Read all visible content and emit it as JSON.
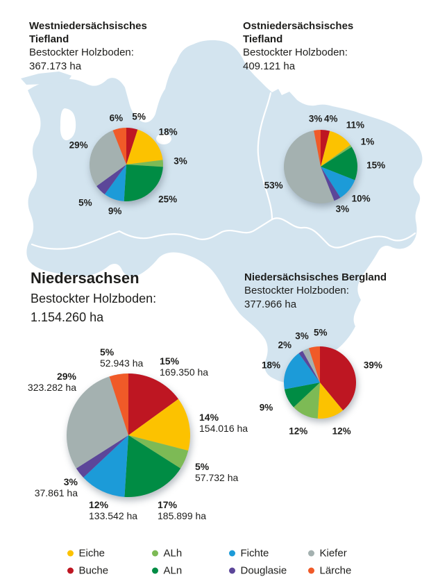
{
  "colors": {
    "Eiche": "#FCC200",
    "Buche": "#BE1622",
    "ALh": "#7DBA55",
    "ALn": "#008C44",
    "Fichte": "#1C9BD8",
    "Douglasie": "#5C4699",
    "Kiefer": "#A4B1B0",
    "Lärche": "#F05A28"
  },
  "map_color": "#D3E4EF",
  "text_color": "#1D1D1B",
  "legend": {
    "items": [
      {
        "label": "Eiche",
        "color_key": "Eiche"
      },
      {
        "label": "Buche",
        "color_key": "Buche"
      },
      {
        "label": "ALh",
        "color_key": "ALh"
      },
      {
        "label": "ALn",
        "color_key": "ALn"
      },
      {
        "label": "Fichte",
        "color_key": "Fichte"
      },
      {
        "label": "Douglasie",
        "color_key": "Douglasie"
      },
      {
        "label": "Kiefer",
        "color_key": "Kiefer"
      },
      {
        "label": "Lärche",
        "color_key": "Lärche"
      }
    ]
  },
  "chart_data": [
    {
      "id": "west-tiefland",
      "type": "pie",
      "title": "Westniedersächsisches Tiefland",
      "subtitle_label": "Bestockter Holzboden:",
      "total": "367.173 ha",
      "unit": "%",
      "start_angle_deg": 0,
      "direction": "clockwise",
      "slices": [
        {
          "name": "Buche",
          "pct": 5
        },
        {
          "name": "Eiche",
          "pct": 18
        },
        {
          "name": "ALh",
          "pct": 3
        },
        {
          "name": "ALn",
          "pct": 25
        },
        {
          "name": "Fichte",
          "pct": 9
        },
        {
          "name": "Douglasie",
          "pct": 5
        },
        {
          "name": "Kiefer",
          "pct": 29
        },
        {
          "name": "Lärche",
          "pct": 6
        }
      ]
    },
    {
      "id": "ost-tiefland",
      "type": "pie",
      "title": "Ostniedersächsisches Tiefland",
      "subtitle_label": "Bestockter Holzboden:",
      "total": "409.121 ha",
      "unit": "%",
      "start_angle_deg": 0,
      "direction": "clockwise",
      "slices": [
        {
          "name": "Buche",
          "pct": 4
        },
        {
          "name": "Eiche",
          "pct": 11
        },
        {
          "name": "ALh",
          "pct": 1
        },
        {
          "name": "ALn",
          "pct": 15
        },
        {
          "name": "Fichte",
          "pct": 10
        },
        {
          "name": "Douglasie",
          "pct": 3
        },
        {
          "name": "Kiefer",
          "pct": 53
        },
        {
          "name": "Lärche",
          "pct": 3
        }
      ]
    },
    {
      "id": "bergland",
      "type": "pie",
      "title": "Niedersächsisches Bergland",
      "subtitle_label": "Bestockter Holzboden:",
      "total": "377.966 ha",
      "unit": "%",
      "start_angle_deg": 0,
      "direction": "clockwise",
      "slices": [
        {
          "name": "Buche",
          "pct": 39
        },
        {
          "name": "Eiche",
          "pct": 12
        },
        {
          "name": "ALh",
          "pct": 12
        },
        {
          "name": "ALn",
          "pct": 9
        },
        {
          "name": "Fichte",
          "pct": 18
        },
        {
          "name": "Douglasie",
          "pct": 2
        },
        {
          "name": "Kiefer",
          "pct": 3
        },
        {
          "name": "Lärche",
          "pct": 5
        }
      ]
    },
    {
      "id": "niedersachsen",
      "type": "pie",
      "title": "Niedersachsen",
      "subtitle_label": "Bestockter Holzboden:",
      "total": "1.154.260 ha",
      "unit": "%",
      "start_angle_deg": 0,
      "direction": "clockwise",
      "slices": [
        {
          "name": "Buche",
          "pct": 15,
          "ha": "169.350 ha"
        },
        {
          "name": "Eiche",
          "pct": 14,
          "ha": "154.016 ha"
        },
        {
          "name": "ALh",
          "pct": 5,
          "ha": "57.732 ha"
        },
        {
          "name": "ALn",
          "pct": 17,
          "ha": "185.899 ha"
        },
        {
          "name": "Fichte",
          "pct": 12,
          "ha": "133.542 ha"
        },
        {
          "name": "Douglasie",
          "pct": 3,
          "ha": "37.861 ha"
        },
        {
          "name": "Kiefer",
          "pct": 29,
          "ha": "323.282 ha"
        },
        {
          "name": "Lärche",
          "pct": 5,
          "ha": "52.943 ha"
        }
      ]
    }
  ]
}
